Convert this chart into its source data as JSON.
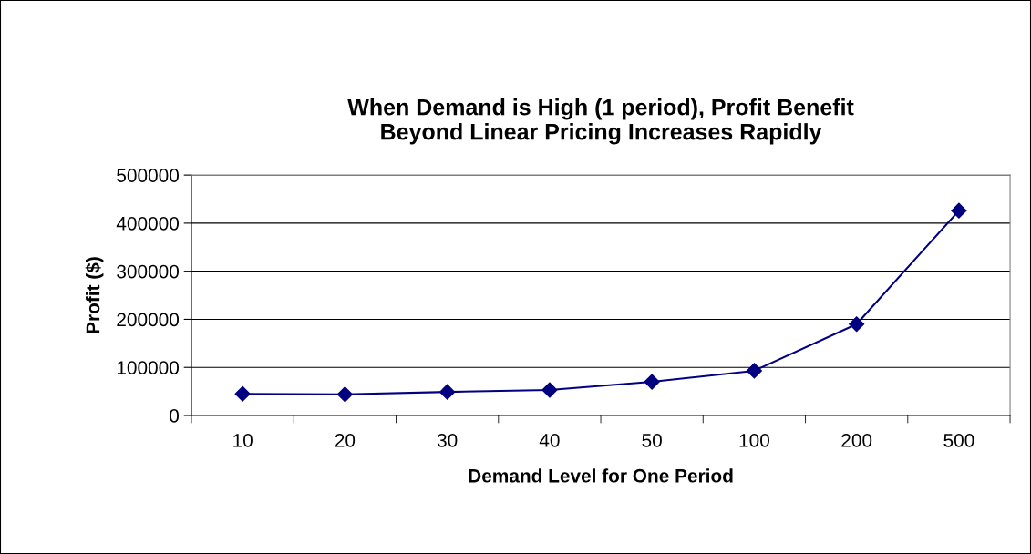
{
  "chart_data": {
    "type": "line",
    "title": "When Demand is High (1 period), Profit Benefit\nBeyond Linear Pricing Increases Rapidly",
    "xlabel": "Demand Level for One Period",
    "ylabel": "Profit ($)",
    "categories": [
      "10",
      "20",
      "30",
      "40",
      "50",
      "100",
      "200",
      "500"
    ],
    "series": [
      {
        "color": "#000080",
        "values": [
          45000,
          44000,
          49000,
          53000,
          70000,
          93000,
          190000,
          426000
        ]
      }
    ],
    "ylim": [
      0,
      500000
    ],
    "yticks": [
      0,
      100000,
      200000,
      300000,
      400000,
      500000
    ],
    "grid": "y",
    "marker": "diamond",
    "line_style": "solid"
  }
}
